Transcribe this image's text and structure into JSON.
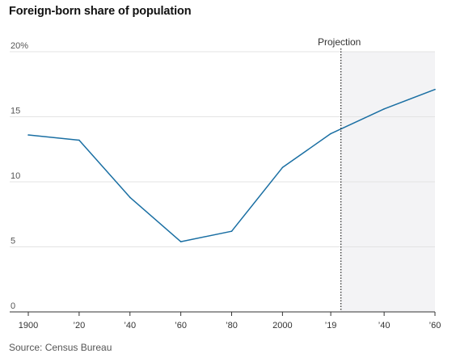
{
  "title": "Foreign-born share of population",
  "source": "Source: Census Bureau",
  "colors": {
    "line": "#1a6fa3",
    "grid": "#e3e3e3",
    "projection_shade": "#f3f3f5",
    "axis": "#333333"
  },
  "chart_data": {
    "type": "line",
    "title": "Foreign-born share of population",
    "xlabel": "",
    "ylabel": "",
    "xlim": [
      1900,
      2060
    ],
    "ylim": [
      0,
      20
    ],
    "grid": true,
    "y_ticks": [
      {
        "value": 0,
        "label": "0"
      },
      {
        "value": 5,
        "label": "5"
      },
      {
        "value": 10,
        "label": "10"
      },
      {
        "value": 15,
        "label": "15"
      },
      {
        "value": 20,
        "label": "20%"
      }
    ],
    "x_ticks": [
      {
        "value": 1900,
        "label": "1900"
      },
      {
        "value": 1920,
        "label": "’20"
      },
      {
        "value": 1940,
        "label": "’40"
      },
      {
        "value": 1960,
        "label": "’60"
      },
      {
        "value": 1980,
        "label": "’80"
      },
      {
        "value": 2000,
        "label": "2000"
      },
      {
        "value": 2019,
        "label": "’19"
      },
      {
        "value": 2040,
        "label": "’40"
      },
      {
        "value": 2060,
        "label": "’60"
      }
    ],
    "series": [
      {
        "points": [
          {
            "x": 1900,
            "y": 13.6
          },
          {
            "x": 1920,
            "y": 13.2
          },
          {
            "x": 1940,
            "y": 8.8
          },
          {
            "x": 1960,
            "y": 5.4
          },
          {
            "x": 1980,
            "y": 6.2
          },
          {
            "x": 2000,
            "y": 11.1
          },
          {
            "x": 2019,
            "y": 13.7
          },
          {
            "x": 2040,
            "y": 15.6
          },
          {
            "x": 2060,
            "y": 17.1
          }
        ]
      }
    ],
    "annotations": [
      {
        "label": "Projection",
        "x": 2023
      }
    ]
  }
}
